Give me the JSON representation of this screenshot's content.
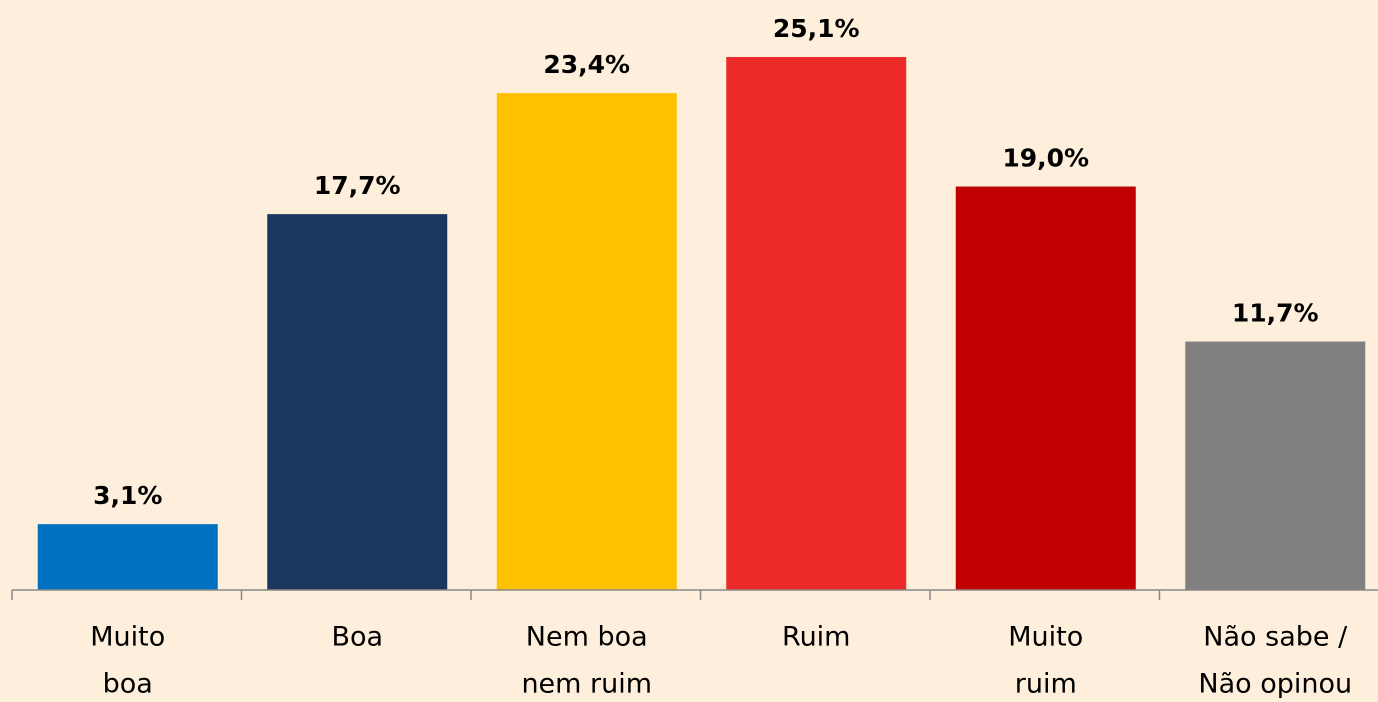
{
  "chart_data": {
    "type": "bar",
    "categories": [
      [
        "Muito",
        "boa"
      ],
      [
        "Boa"
      ],
      [
        "Nem boa",
        "nem ruim"
      ],
      [
        "Ruim"
      ],
      [
        "Muito",
        "ruim"
      ],
      [
        "Não sabe /",
        "Não opinou"
      ]
    ],
    "values": [
      3.1,
      17.7,
      23.4,
      25.1,
      19.0,
      11.7
    ],
    "value_labels": [
      "3,1%",
      "17,7%",
      "23,4%",
      "25,1%",
      "19,0%",
      "11,7%"
    ],
    "colors": [
      "#0070c0",
      "#1c375e",
      "#ffc000",
      "#ec2a2a",
      "#c00000",
      "#808080"
    ]
  }
}
